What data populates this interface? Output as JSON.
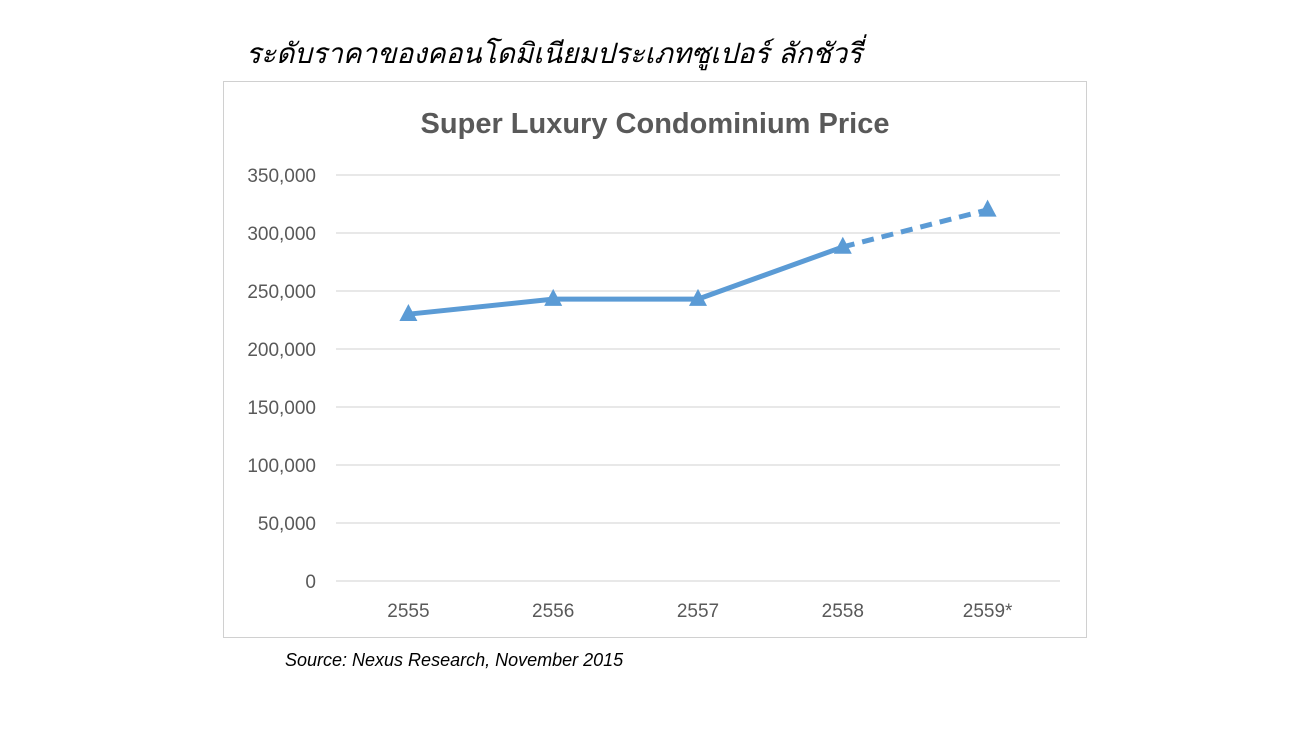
{
  "heading": "ระดับราคาของคอนโดมิเนียมประเภทซูเปอร์ ลักชัวรี่",
  "source": "Source: Nexus Research, November 2015",
  "colors": {
    "series": "#5b9bd5",
    "gridline": "#d9d9d9",
    "text": "#595959"
  },
  "chart_data": {
    "type": "line",
    "title": "Super Luxury Condominium Price",
    "xlabel": "",
    "ylabel": "",
    "categories": [
      "2555",
      "2556",
      "2557",
      "2558",
      "2559*"
    ],
    "series": [
      {
        "values": [
          230000,
          243000,
          243000,
          288000,
          320000
        ],
        "marker": "triangle",
        "solid_through_index": 3,
        "dashed_from_index": 3
      }
    ],
    "ylim": [
      0,
      350000
    ],
    "yticks": [
      "0",
      "50,000",
      "100,000",
      "150,000",
      "200,000",
      "250,000",
      "300,000",
      "350,000"
    ],
    "ytick_values": [
      0,
      50000,
      100000,
      150000,
      200000,
      250000,
      300000,
      350000
    ],
    "grid": true,
    "legend": "none"
  }
}
